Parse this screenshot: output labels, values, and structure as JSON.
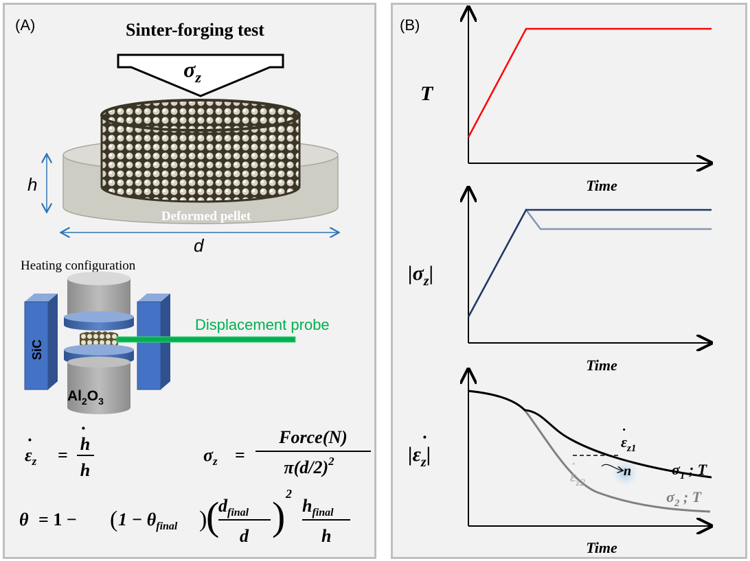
{
  "panel_a": {
    "label": "(A)",
    "title": "Sinter-forging test",
    "load_symbol": "σ",
    "load_subscript": "z",
    "pellet_label": "Deformed pellet",
    "height_label": "h",
    "diameter_label": "d",
    "heating_title": "Heating configuration",
    "sic_label": "SiC",
    "alumina_label_main": "Al",
    "alumina_sub1": "2",
    "alumina_mid": "O",
    "alumina_sub2": "3",
    "probe_label": "Displacement probe",
    "colors": {
      "probe": "#00b050",
      "heater": "#4472c4",
      "heater_dark": "#2f528f",
      "arrow": "#2e75b6"
    }
  },
  "equations": {
    "strain_rate_lhs": "ε",
    "strain_rate_lhs_sub": "z",
    "equals": "=",
    "strain_rate_num": "h",
    "strain_rate_den": "h",
    "stress_lhs": "σ",
    "stress_lhs_sub": "z",
    "stress_num": "Force(N)",
    "stress_den": "π(d/2)",
    "stress_den_sup": "2",
    "theta_lhs": "θ",
    "theta_rest": "= 1 − ",
    "theta_paren_inner": "1 − θ",
    "theta_paren_sub": "final",
    "theta_frac1_num": "d",
    "theta_frac1_num_sub": "final",
    "theta_frac1_den": "d",
    "theta_frac1_sup": "2",
    "theta_frac2_num": "h",
    "theta_frac2_num_sub": "final",
    "theta_frac2_den": "h"
  },
  "panel_b": {
    "label": "(B)",
    "charts": [
      {
        "ylabel": "T",
        "xlabel": "Time",
        "color": "#ff0000"
      },
      {
        "ylabel_prefix": "|σ",
        "ylabel_sub": "z",
        "ylabel_suffix": "|",
        "xlabel": "Time",
        "colors": [
          "#1f3864",
          "#8496b0"
        ]
      },
      {
        "ylabel_prefix": "|ε",
        "ylabel_sub": "z",
        "ylabel_suffix": "|",
        "xlabel": "Time",
        "colors": [
          "#000000",
          "#808080"
        ]
      }
    ],
    "annotations": {
      "eps1": "ε",
      "eps1_sub": "z1",
      "eps2": "ε",
      "eps2_sub": "z2",
      "n": "n",
      "sigma1": "σ",
      "sigma1_sub": "1",
      "sigma1_rest": " ; T",
      "sigma2": "σ",
      "sigma2_sub": "2",
      "sigma2_rest": " ; T"
    }
  }
}
